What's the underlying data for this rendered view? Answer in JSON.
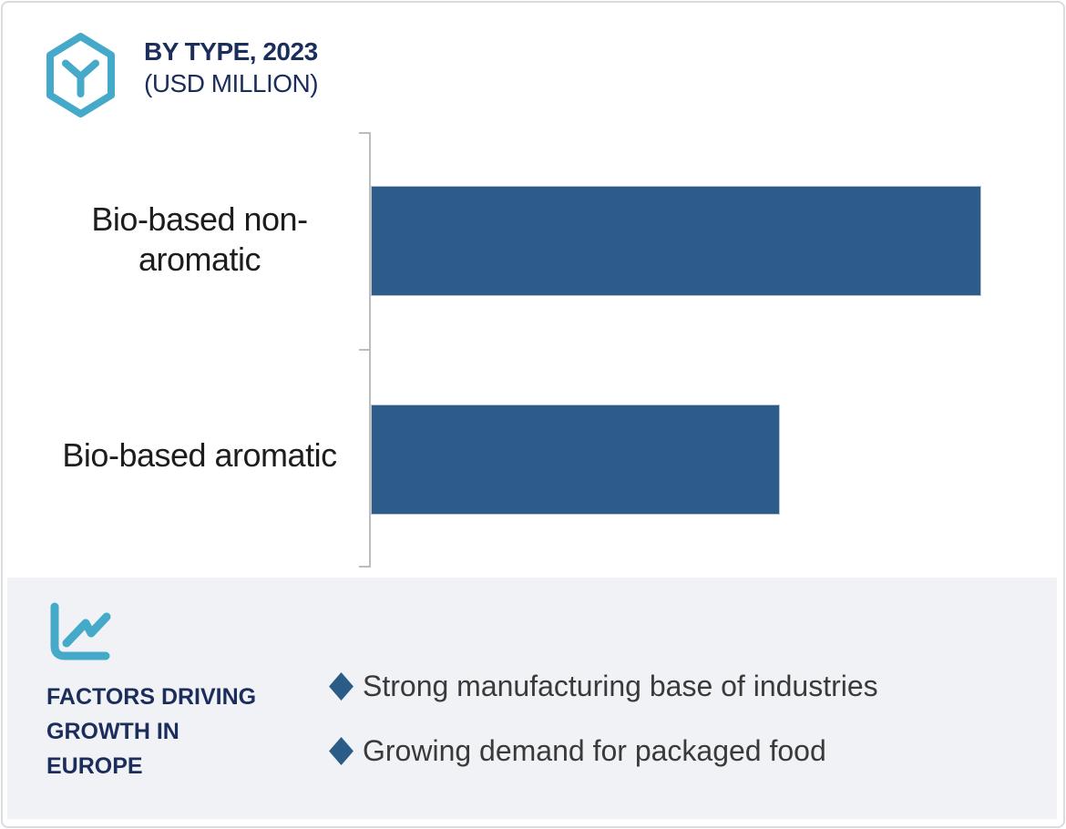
{
  "header": {
    "title_line1": "BY TYPE, 2023",
    "title_line2": "(USD MILLION)",
    "icon": "hexagon-cube-icon"
  },
  "chart_data": {
    "type": "bar",
    "orientation": "horizontal",
    "title": "BY TYPE, 2023 (USD MILLION)",
    "categories": [
      "Bio-based non-aromatic",
      "Bio-based aromatic"
    ],
    "relative_values": [
      100,
      67
    ],
    "value_labels_shown": false,
    "xlabel": "",
    "ylabel": "",
    "grid": false,
    "legend": "none",
    "bar_color": "#2d5c8a",
    "axis_color": "#bdbdbd"
  },
  "panel": {
    "icon": "line-chart-icon",
    "title": "FACTORS DRIVING\nGROWTH IN\nEUROPE",
    "factors": [
      "Strong manufacturing base of industries",
      "Growing demand for packaged food"
    ],
    "bullet_color": "#2b5c88",
    "background_color": "#f1f2f6"
  },
  "colors": {
    "navy": "#1b2d5b",
    "teal": "#45a9c9",
    "bar_blue": "#2d5c8a",
    "text_dark": "#3a3a3a"
  }
}
